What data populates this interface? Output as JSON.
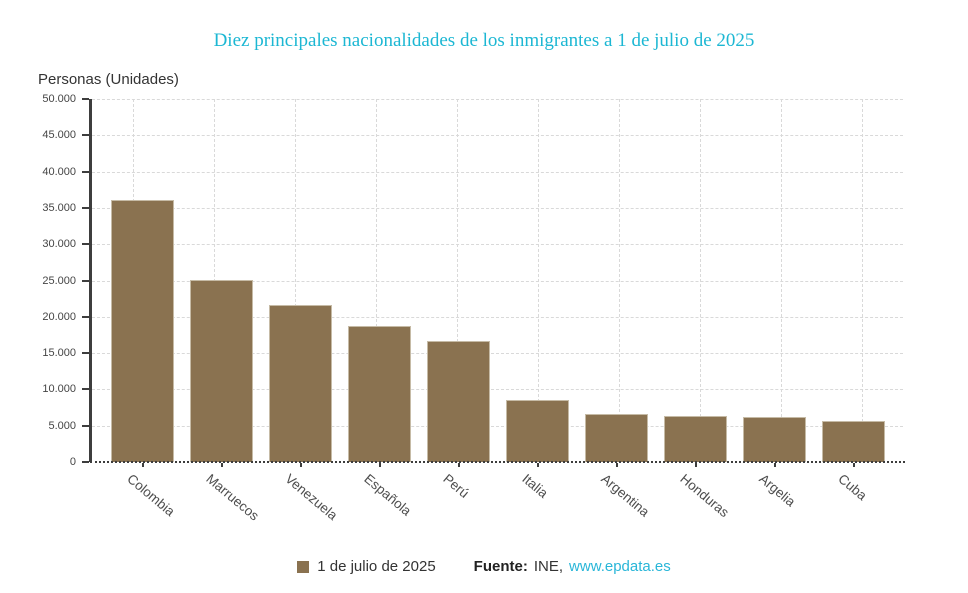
{
  "title": "Diez principales nacionalidades de los inmigrantes a 1 de julio de 2025",
  "axis_title": "Personas (Unidades)",
  "chart_data": {
    "type": "bar",
    "title": "Diez principales nacionalidades de los inmigrantes a 1 de julio de 2025",
    "xlabel": "",
    "ylabel": "Personas (Unidades)",
    "categories": [
      "Colombia",
      "Marruecos",
      "Venezuela",
      "Española",
      "Perú",
      "Italia",
      "Argentina",
      "Honduras",
      "Argelia",
      "Cuba"
    ],
    "series": [
      {
        "name": "1 de julio de 2025",
        "values": [
          36100,
          25100,
          21600,
          18700,
          16600,
          8500,
          6600,
          6400,
          6200,
          5700
        ]
      }
    ],
    "ylim": [
      0,
      50000
    ],
    "ytick_step": 5000,
    "ytick_labels": [
      "0",
      "5.000",
      "10.000",
      "15.000",
      "20.000",
      "25.000",
      "30.000",
      "35.000",
      "40.000",
      "45.000",
      "50.000"
    ],
    "grid": true,
    "legend_position": "bottom"
  },
  "legend": {
    "series_label": "1 de julio de 2025",
    "source_label": "Fuente:",
    "source_name": "INE,",
    "source_link": "www.epdata.es"
  },
  "colors": {
    "title": "#1cb7d3",
    "link": "#29b6d8",
    "bar_fill": "#8a7250",
    "bar_border": "#c6bba6",
    "grid": "#d9d9d9",
    "axis": "#3d3d3d",
    "tick_label": "#454545",
    "category_label": "#4d4d4d",
    "legend_text": "#333333"
  }
}
